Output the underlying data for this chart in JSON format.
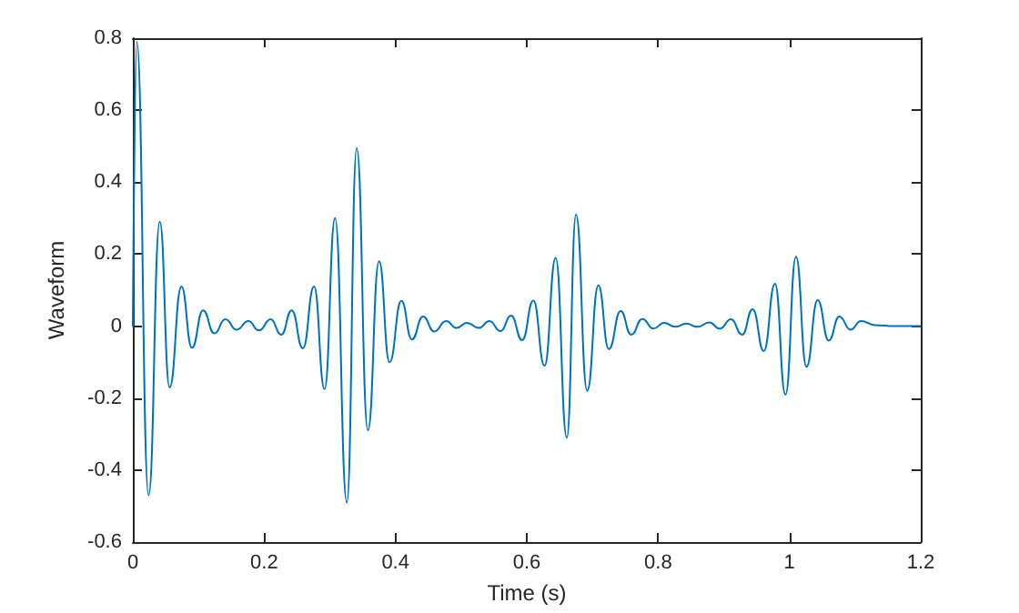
{
  "chart_data": {
    "type": "line",
    "xlabel": "Time (s)",
    "ylabel": "Waveform",
    "xlim": [
      0,
      1.2
    ],
    "xticks": [
      0,
      0.2,
      0.4,
      0.6,
      0.8,
      1,
      1.2
    ],
    "ylim": [
      -0.6,
      0.8
    ],
    "yticks": [
      -0.6,
      -0.4,
      -0.2,
      0,
      0.2,
      0.4,
      0.6,
      0.8
    ],
    "marker": "none",
    "line_style": "solid",
    "x": [
      0,
      0.006,
      0.024,
      0.041,
      0.056,
      0.074,
      0.09,
      0.107,
      0.124,
      0.141,
      0.158,
      0.176,
      0.192,
      0.21,
      0.226,
      0.242,
      0.259,
      0.276,
      0.292,
      0.308,
      0.326,
      0.341,
      0.358,
      0.375,
      0.391,
      0.409,
      0.425,
      0.442,
      0.459,
      0.477,
      0.493,
      0.509,
      0.527,
      0.543,
      0.56,
      0.576,
      0.593,
      0.61,
      0.627,
      0.644,
      0.661,
      0.675,
      0.692,
      0.709,
      0.725,
      0.743,
      0.759,
      0.776,
      0.793,
      0.809,
      0.826,
      0.843,
      0.86,
      0.878,
      0.894,
      0.911,
      0.928,
      0.944,
      0.961,
      0.978,
      0.994,
      1.01,
      1.026,
      1.043,
      1.06,
      1.076,
      1.093,
      1.109,
      1.13,
      1.16,
      1.2
    ],
    "series": [
      {
        "color": "#0072bd",
        "values": [
          0,
          0.79,
          -0.47,
          0.29,
          -0.17,
          0.11,
          -0.06,
          0.044,
          -0.02,
          0.019,
          -0.01,
          0.014,
          -0.012,
          0.019,
          -0.024,
          0.044,
          -0.062,
          0.11,
          -0.175,
          0.3,
          -0.49,
          0.495,
          -0.29,
          0.18,
          -0.1,
          0.07,
          -0.037,
          0.027,
          -0.015,
          0.014,
          -0.005,
          0.009,
          -0.005,
          0.014,
          -0.014,
          0.029,
          -0.039,
          0.071,
          -0.11,
          0.19,
          -0.31,
          0.31,
          -0.18,
          0.113,
          -0.064,
          0.042,
          -0.024,
          0.02,
          -0.007,
          0.009,
          -0.002,
          0.007,
          -0.002,
          0.01,
          -0.007,
          0.019,
          -0.024,
          0.047,
          -0.069,
          0.118,
          -0.19,
          0.193,
          -0.113,
          0.072,
          -0.04,
          0.027,
          -0.01,
          0.014,
          0.003,
          0,
          0
        ]
      }
    ]
  }
}
